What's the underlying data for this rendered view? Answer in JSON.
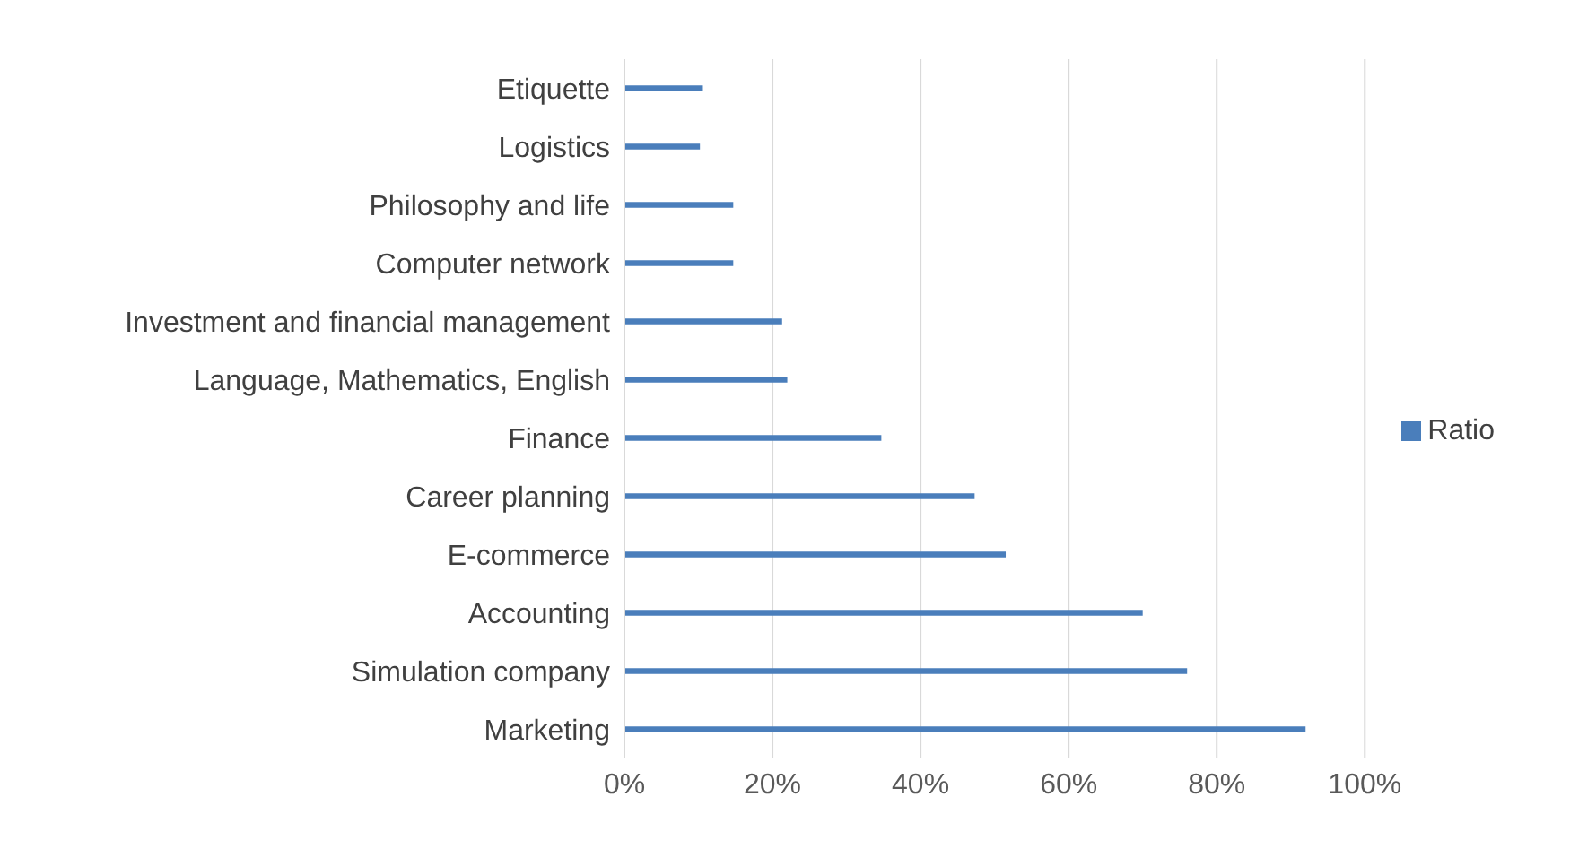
{
  "chart_data": {
    "type": "bar",
    "orientation": "horizontal",
    "categories": [
      "Etiquette",
      "Logistics",
      "Philosophy and life",
      "Computer network",
      "Investment and financial management",
      "Language, Mathematics, English",
      "Finance",
      "Career planning",
      "E-commerce",
      "Accounting",
      "Simulation company",
      "Marketing"
    ],
    "series": [
      {
        "name": "Ratio",
        "color": "#4a7ebb",
        "values": [
          10.6,
          10.2,
          14.7,
          14.7,
          21.3,
          22,
          34.7,
          47.3,
          51.5,
          70,
          76,
          92
        ]
      }
    ],
    "xlim": [
      0,
      100
    ],
    "xticks": [
      {
        "value": 0,
        "label": "0%"
      },
      {
        "value": 20,
        "label": "20%"
      },
      {
        "value": 40,
        "label": "40%"
      },
      {
        "value": 60,
        "label": "60%"
      },
      {
        "value": 80,
        "label": "80%"
      },
      {
        "value": 100,
        "label": "100%"
      }
    ],
    "grid": "x",
    "legend": "right"
  }
}
